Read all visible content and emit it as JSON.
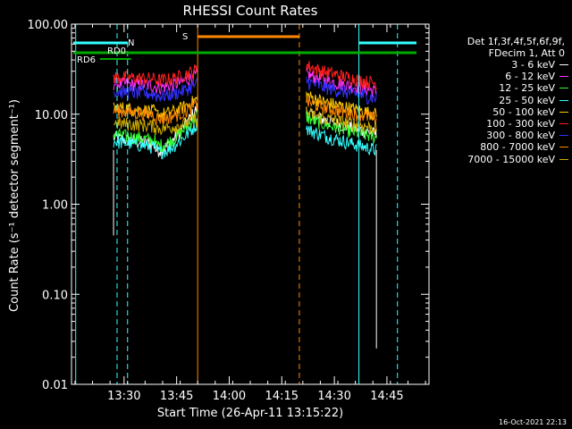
{
  "chart_data": {
    "type": "line",
    "title": "RHESSI Count Rates",
    "xlabel": "Start Time (26-Apr-11 13:15:22)",
    "ylabel": "Count Rate (s⁻¹ detector segment⁻¹)",
    "yscale": "log",
    "ylim": [
      0.01,
      100
    ],
    "xlim_minutes": [
      13.25,
      14.95
    ],
    "x_ticks": [
      "13:30",
      "13:45",
      "14:00",
      "14:15",
      "14:30",
      "14:45"
    ],
    "y_ticks": [
      "0.01",
      "0.10",
      "1.00",
      "10.00",
      "100.00"
    ],
    "legend_title": "Det 1f,3f,4f,5f,6f,9f,",
    "legend_subtitle": "FDecim 1, Att 0",
    "series": [
      {
        "name": "3 - 6 keV",
        "color": "#ffffff",
        "seg1": [
          5.5,
          4.0,
          12
        ],
        "seg2": [
          9.0,
          6.0
        ]
      },
      {
        "name": "6 - 12 keV",
        "color": "#ff33ff",
        "seg1": [
          22,
          20,
          28
        ],
        "seg2": [
          24,
          18
        ]
      },
      {
        "name": "12 - 25 keV",
        "color": "#33ff33",
        "seg1": [
          6.0,
          4.5,
          10
        ],
        "seg2": [
          8.0,
          5.5
        ]
      },
      {
        "name": "25 - 50 keV",
        "color": "#33ffff",
        "seg1": [
          5.0,
          3.8,
          8
        ],
        "seg2": [
          6.0,
          4.0
        ]
      },
      {
        "name": "50 - 100 keV",
        "color": "#ffcc00",
        "seg1": [
          12,
          10,
          15
        ],
        "seg2": [
          14,
          10
        ]
      },
      {
        "name": "100 - 300 keV",
        "color": "#ff2020",
        "seg1": [
          26,
          24,
          32
        ],
        "seg2": [
          30,
          22
        ]
      },
      {
        "name": "300 - 800 keV",
        "color": "#3030ff",
        "seg1": [
          18,
          16,
          22
        ],
        "seg2": [
          20,
          15
        ]
      },
      {
        "name": "800 - 7000 keV",
        "color": "#ff8800",
        "seg1": [
          11,
          9,
          13
        ],
        "seg2": [
          12,
          9
        ]
      },
      {
        "name": "7000 - 15000 keV",
        "color": "#ccaa00",
        "seg1": [
          8,
          7,
          9
        ],
        "seg2": [
          9,
          7
        ]
      }
    ],
    "flags": [
      {
        "label": "N",
        "color": "#33ffff"
      },
      {
        "label": "RD0",
        "color": "#00aa00"
      },
      {
        "label": "RD6",
        "color": "#00aa00"
      },
      {
        "label": "S",
        "color": "#ff8800"
      }
    ],
    "grid": false
  },
  "timestamp": "16-Oct-2021 22:13"
}
